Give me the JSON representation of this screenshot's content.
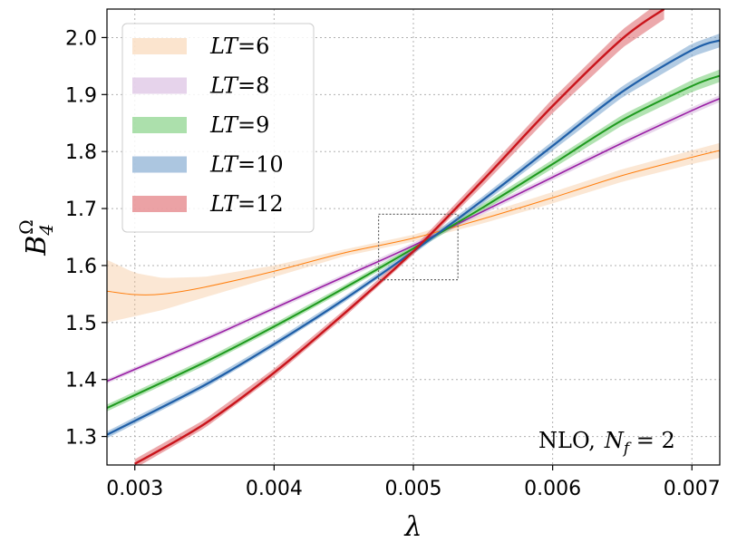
{
  "chart_data": {
    "type": "line",
    "xlabel": "λ",
    "ylabel": {
      "main": "B",
      "sub": "4",
      "sup": "Ω"
    },
    "xlim": [
      0.0028,
      0.0072
    ],
    "ylim": [
      1.25,
      2.05
    ],
    "xticks": [
      0.003,
      0.004,
      0.005,
      0.006,
      0.007
    ],
    "xtick_labels": [
      "0.003",
      "0.004",
      "0.005",
      "0.006",
      "0.007"
    ],
    "yticks": [
      1.3,
      1.4,
      1.5,
      1.6,
      1.7,
      1.8,
      1.9,
      2.0
    ],
    "ytick_labels": [
      "1.3",
      "1.4",
      "1.5",
      "1.6",
      "1.7",
      "1.8",
      "1.9",
      "2.0"
    ],
    "grid": true,
    "legend_position": "top-left",
    "annotation": {
      "prefix": "NLO,",
      "var": "N",
      "sub": "f",
      "eq": " = 2"
    },
    "inset_box": {
      "xlim": [
        0.00475,
        0.00532
      ],
      "ylim": [
        1.575,
        1.69
      ]
    },
    "series": [
      {
        "name": "LT = 6",
        "label_lhs": "LT",
        "label_rhs": "6",
        "color": "#ff7f0e",
        "band_color": "#f5c08e",
        "band_opacity": 0.38,
        "line_width": 1.0,
        "points": [
          [
            0.0028,
            1.555
          ],
          [
            0.003,
            1.549
          ],
          [
            0.0032,
            1.55
          ],
          [
            0.0035,
            1.562
          ],
          [
            0.004,
            1.59
          ],
          [
            0.0045,
            1.622
          ],
          [
            0.005,
            1.648
          ],
          [
            0.0055,
            1.682
          ],
          [
            0.006,
            1.719
          ],
          [
            0.0065,
            1.758
          ],
          [
            0.007,
            1.79
          ],
          [
            0.0072,
            1.802
          ]
        ],
        "band_width": [
          [
            0.0028,
            0.055
          ],
          [
            0.003,
            0.038
          ],
          [
            0.0032,
            0.028
          ],
          [
            0.0035,
            0.018
          ],
          [
            0.004,
            0.01
          ],
          [
            0.0045,
            0.006
          ],
          [
            0.005,
            0.006
          ],
          [
            0.0055,
            0.008
          ],
          [
            0.006,
            0.01
          ],
          [
            0.0065,
            0.011
          ],
          [
            0.007,
            0.012
          ],
          [
            0.0072,
            0.013
          ]
        ]
      },
      {
        "name": "LT = 8",
        "label_lhs": "LT",
        "label_rhs": "8",
        "color": "#9a1fa5",
        "band_color": "#d6b6dd",
        "band_opacity": 0.55,
        "line_width": 1.6,
        "points": [
          [
            0.0028,
            1.397
          ],
          [
            0.0035,
            1.47
          ],
          [
            0.004,
            1.525
          ],
          [
            0.0045,
            1.58
          ],
          [
            0.005,
            1.635
          ],
          [
            0.0055,
            1.695
          ],
          [
            0.006,
            1.755
          ],
          [
            0.0065,
            1.815
          ],
          [
            0.007,
            1.872
          ],
          [
            0.0072,
            1.893
          ]
        ],
        "band_width": [
          [
            0.0028,
            0.004
          ],
          [
            0.0072,
            0.006
          ]
        ]
      },
      {
        "name": "LT = 9",
        "label_lhs": "LT",
        "label_rhs": "9",
        "color": "#1e9a1e",
        "band_color": "#7fd07f",
        "band_opacity": 0.6,
        "line_width": 2.0,
        "points": [
          [
            0.0028,
            1.35
          ],
          [
            0.0035,
            1.43
          ],
          [
            0.004,
            1.493
          ],
          [
            0.0045,
            1.56
          ],
          [
            0.005,
            1.63
          ],
          [
            0.0055,
            1.702
          ],
          [
            0.006,
            1.778
          ],
          [
            0.0065,
            1.855
          ],
          [
            0.007,
            1.915
          ],
          [
            0.0072,
            1.933
          ]
        ],
        "band_width": [
          [
            0.0028,
            0.006
          ],
          [
            0.005,
            0.005
          ],
          [
            0.0072,
            0.011
          ]
        ]
      },
      {
        "name": "LT = 10",
        "label_lhs": "LT",
        "label_rhs": "10",
        "color": "#1f5fa8",
        "band_color": "#7fa8d0",
        "band_opacity": 0.6,
        "line_width": 2.2,
        "points": [
          [
            0.0028,
            1.303
          ],
          [
            0.0035,
            1.39
          ],
          [
            0.004,
            1.462
          ],
          [
            0.0045,
            1.54
          ],
          [
            0.005,
            1.625
          ],
          [
            0.0055,
            1.715
          ],
          [
            0.006,
            1.81
          ],
          [
            0.0065,
            1.905
          ],
          [
            0.007,
            1.978
          ],
          [
            0.0072,
            1.995
          ]
        ],
        "band_width": [
          [
            0.0028,
            0.006
          ],
          [
            0.005,
            0.005
          ],
          [
            0.0072,
            0.012
          ]
        ]
      },
      {
        "name": "LT = 12",
        "label_lhs": "LT",
        "label_rhs": "12",
        "color": "#c9141b",
        "band_color": "#e07074",
        "band_opacity": 0.6,
        "line_width": 2.4,
        "points": [
          [
            0.003,
            1.252
          ],
          [
            0.0035,
            1.322
          ],
          [
            0.004,
            1.412
          ],
          [
            0.0045,
            1.515
          ],
          [
            0.005,
            1.625
          ],
          [
            0.0055,
            1.75
          ],
          [
            0.006,
            1.88
          ],
          [
            0.0065,
            1.998
          ],
          [
            0.0068,
            2.05
          ]
        ],
        "band_width": [
          [
            0.003,
            0.008
          ],
          [
            0.005,
            0.006
          ],
          [
            0.0068,
            0.018
          ]
        ]
      }
    ]
  }
}
